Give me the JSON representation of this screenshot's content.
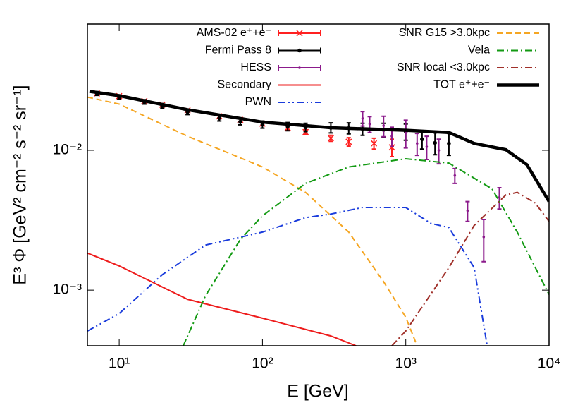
{
  "chart_data": {
    "type": "line",
    "log_x": true,
    "log_y": true,
    "xlabel": "E [GeV]",
    "ylabel": "E³ Φ [GeV² cm⁻² s⁻² sr⁻¹]",
    "xlim": [
      6,
      10000
    ],
    "ylim": [
      0.0004,
      0.08
    ],
    "xticks": [
      {
        "value": 10,
        "label": "10¹"
      },
      {
        "value": 100,
        "label": "10²"
      },
      {
        "value": 1000,
        "label": "10³"
      },
      {
        "value": 10000,
        "label": "10⁴"
      }
    ],
    "yticks": [
      {
        "value": 0.001,
        "label": "10⁻³"
      },
      {
        "value": 0.01,
        "label": "10⁻²"
      }
    ],
    "series": [
      {
        "name": "AMS-02 e⁺+e⁻",
        "color": "#ff2020",
        "style": "solid",
        "marker": "x",
        "x": [
          7,
          10,
          15,
          20,
          30,
          50,
          70,
          100,
          150,
          200,
          300,
          400,
          600,
          800
        ],
        "values": [
          0.0255,
          0.0244,
          0.0225,
          0.0212,
          0.0193,
          0.0175,
          0.0165,
          0.0155,
          0.0145,
          0.0135,
          0.0122,
          0.0115,
          0.0112,
          0.0105
        ],
        "errors": [
          0.0004,
          0.0004,
          0.0004,
          0.0004,
          0.0004,
          0.0004,
          0.0004,
          0.0004,
          0.0005,
          0.0005,
          0.0006,
          0.0008,
          0.001,
          0.0015
        ]
      },
      {
        "name": "Fermi Pass 8",
        "color": "#000000",
        "style": "solid",
        "marker": "circle",
        "x": [
          7,
          10,
          15,
          20,
          30,
          50,
          70,
          100,
          150,
          200,
          300,
          400,
          500,
          700,
          1000,
          1300,
          1600,
          2000
        ],
        "values": [
          0.0255,
          0.024,
          0.0222,
          0.0208,
          0.0188,
          0.017,
          0.016,
          0.0153,
          0.0148,
          0.0146,
          0.0145,
          0.0144,
          0.0142,
          0.014,
          0.0136,
          0.012,
          0.0113,
          0.0112
        ],
        "errors": [
          0.0008,
          0.0008,
          0.0008,
          0.0008,
          0.0008,
          0.0008,
          0.0008,
          0.0009,
          0.001,
          0.001,
          0.0012,
          0.0013,
          0.0014,
          0.0016,
          0.0018,
          0.0018,
          0.002,
          0.002
        ]
      },
      {
        "name": "HESS",
        "color": "#8b1a8b",
        "style": "solid",
        "marker": "dot",
        "x": [
          500,
          560,
          700,
          800,
          1000,
          1200,
          1400,
          1700,
          2200,
          2700,
          3500,
          4500
        ],
        "values": [
          0.0169,
          0.0154,
          0.015,
          0.0126,
          0.0134,
          0.0112,
          0.0106,
          0.01,
          0.0066,
          0.0037,
          0.0024,
          0.0046
        ],
        "errors": [
          0.002,
          0.002,
          0.0025,
          0.002,
          0.003,
          0.002,
          0.002,
          0.002,
          0.0008,
          0.0006,
          0.0008,
          0.0008
        ]
      },
      {
        "name": "Secondary",
        "color": "#ee1c1c",
        "style": "solid",
        "x": [
          6,
          10,
          30,
          100,
          300,
          450
        ],
        "values": [
          0.00184,
          0.00149,
          0.00086,
          0.00063,
          0.00047,
          0.0004
        ]
      },
      {
        "name": "PWN",
        "color": "#1a3cdc",
        "style": "dash-dot-dot",
        "x": [
          6,
          10,
          20,
          40,
          100,
          200,
          300,
          500,
          1000,
          1500,
          2000,
          3000,
          3700
        ],
        "values": [
          0.00051,
          0.00068,
          0.00129,
          0.0021,
          0.0026,
          0.0033,
          0.0035,
          0.0039,
          0.0039,
          0.003,
          0.0028,
          0.00145,
          0.0004
        ]
      },
      {
        "name": "SNR G15 >3.0kpc",
        "color": "#f5a623",
        "style": "dashed",
        "x": [
          6,
          10,
          30,
          100,
          200,
          400,
          700,
          1000,
          1200
        ],
        "values": [
          0.024,
          0.0214,
          0.0126,
          0.0076,
          0.005,
          0.0026,
          0.00115,
          0.00064,
          0.0004
        ]
      },
      {
        "name": "Vela",
        "color": "#139a13",
        "style": "dash-dot",
        "x": [
          28,
          40,
          70,
          100,
          200,
          400,
          1000,
          2000,
          4000,
          6000,
          10000
        ],
        "values": [
          0.0004,
          0.00091,
          0.0023,
          0.0034,
          0.0058,
          0.0076,
          0.0087,
          0.0081,
          0.0053,
          0.0026,
          0.00093
        ]
      },
      {
        "name": "SNR local <3.0kpc",
        "color": "#a0302a",
        "style": "dash-dot",
        "x": [
          800,
          1000,
          2000,
          3000,
          5000,
          6000,
          8000,
          10000
        ],
        "values": [
          0.0004,
          0.00051,
          0.00145,
          0.0029,
          0.0048,
          0.005,
          0.0042,
          0.0031
        ]
      },
      {
        "name": "TOT e⁺+e⁻",
        "color": "#000000",
        "style": "thick",
        "x": [
          6.2,
          10,
          30,
          100,
          300,
          1000,
          2000,
          3000,
          5000,
          7000,
          10000
        ],
        "values": [
          0.0264,
          0.0246,
          0.0195,
          0.0159,
          0.0145,
          0.0139,
          0.0134,
          0.0112,
          0.0101,
          0.0079,
          0.0043
        ]
      }
    ]
  }
}
